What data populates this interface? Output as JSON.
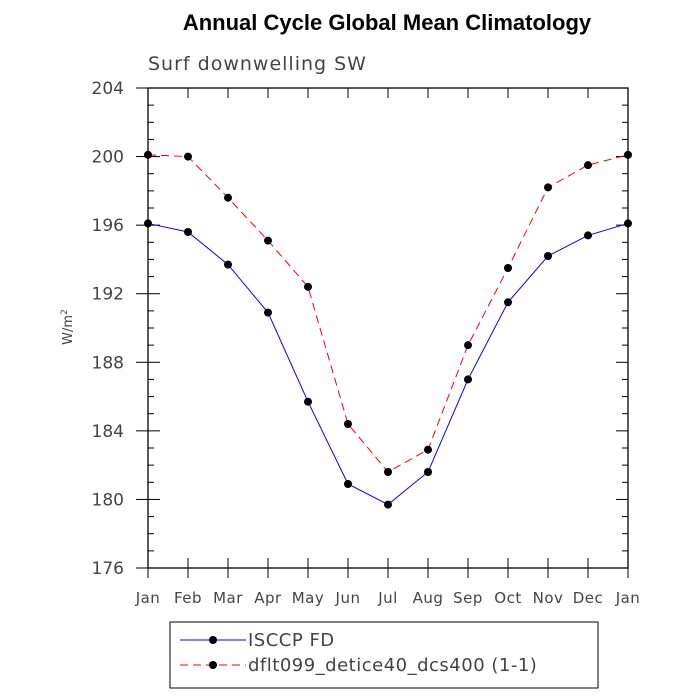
{
  "chart_data": {
    "type": "line",
    "title": "Annual Cycle Global Mean Climatology",
    "subtitle": "Surf downwelling SW",
    "ylabel_base": "W/m",
    "ylabel_sup": "2",
    "categories": [
      "Jan",
      "Feb",
      "Mar",
      "Apr",
      "May",
      "Jun",
      "Jul",
      "Aug",
      "Sep",
      "Oct",
      "Nov",
      "Dec",
      "Jan"
    ],
    "ylim": [
      176,
      204
    ],
    "yticks": [
      176,
      180,
      184,
      188,
      192,
      196,
      200,
      204
    ],
    "grid": false,
    "legend_position": "bottom",
    "series": [
      {
        "name": "ISCCP FD",
        "color": "#0000ff",
        "dash": "solid",
        "values": [
          196.1,
          195.6,
          193.7,
          190.9,
          185.7,
          180.9,
          179.7,
          181.6,
          187.0,
          191.5,
          194.2,
          195.4,
          196.1
        ]
      },
      {
        "name": "dflt099_detice40_dcs400 (1-1)",
        "color": "#ff0000",
        "dash": "dashed",
        "values": [
          200.1,
          200.0,
          197.6,
          195.1,
          192.4,
          184.4,
          181.6,
          182.9,
          189.0,
          193.5,
          198.2,
          199.5,
          200.1
        ]
      }
    ]
  }
}
